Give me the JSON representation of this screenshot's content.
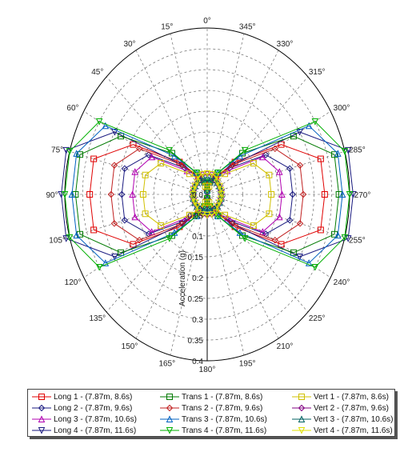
{
  "chart_data": {
    "type": "polar-line",
    "radial_axis_label": "Acceleration (g)",
    "radial_ticks": [
      "0.0",
      "0.05",
      "0.1",
      "0.15",
      "0.2",
      "0.25",
      "0.3",
      "0.35",
      "0.4"
    ],
    "rlim": [
      0,
      0.4
    ],
    "angle_ticks": [
      "0°",
      "15°",
      "30°",
      "45°",
      "60°",
      "75°",
      "90°",
      "105°",
      "120°",
      "135°",
      "150°",
      "165°",
      "180°",
      "195°",
      "210°",
      "225°",
      "240°",
      "255°",
      "270°",
      "285°",
      "300°",
      "315°",
      "330°",
      "345°"
    ],
    "angles_deg": [
      0,
      15,
      30,
      45,
      60,
      75,
      90,
      105,
      120,
      135,
      150,
      165,
      180,
      195,
      210,
      225,
      240,
      255,
      270,
      285,
      300,
      315,
      330,
      345
    ],
    "grid": true,
    "legend_position": "bottom",
    "series": [
      {
        "name": "Long 1 - (7.87m, 8.6s)",
        "color": "#e00000",
        "marker": "square",
        "values": [
          0.02,
          0.03,
          0.05,
          0.11,
          0.24,
          0.33,
          0.33,
          0.33,
          0.24,
          0.11,
          0.05,
          0.03,
          0.02,
          0.03,
          0.05,
          0.11,
          0.24,
          0.33,
          0.33,
          0.33,
          0.24,
          0.11,
          0.05,
          0.03
        ]
      },
      {
        "name": "Long 2 - (7.87m, 9.6s)",
        "color": "#1a1a80",
        "marker": "diamond",
        "values": [
          0.02,
          0.03,
          0.05,
          0.09,
          0.19,
          0.24,
          0.24,
          0.24,
          0.19,
          0.09,
          0.05,
          0.03,
          0.02,
          0.03,
          0.05,
          0.09,
          0.19,
          0.24,
          0.24,
          0.24,
          0.19,
          0.09,
          0.05,
          0.03
        ]
      },
      {
        "name": "Long 3 - (7.87m, 10.6s)",
        "color": "#b000b0",
        "marker": "triangle-up",
        "values": [
          0.02,
          0.03,
          0.05,
          0.08,
          0.18,
          0.21,
          0.21,
          0.21,
          0.18,
          0.08,
          0.05,
          0.03,
          0.02,
          0.03,
          0.05,
          0.08,
          0.18,
          0.21,
          0.21,
          0.21,
          0.18,
          0.08,
          0.05,
          0.03
        ]
      },
      {
        "name": "Long 4 - (7.87m, 11.6s)",
        "color": "#1a1a80",
        "marker": "triangle-down",
        "values": [
          0.02,
          0.03,
          0.05,
          0.1,
          0.3,
          0.41,
          0.41,
          0.41,
          0.3,
          0.1,
          0.05,
          0.03,
          0.02,
          0.03,
          0.05,
          0.1,
          0.3,
          0.41,
          0.41,
          0.41,
          0.3,
          0.1,
          0.05,
          0.03
        ]
      },
      {
        "name": "Trans 1 - (7.87m, 8.6s)",
        "color": "#007a00",
        "marker": "square",
        "values": [
          0.01,
          0.03,
          0.06,
          0.14,
          0.28,
          0.37,
          0.37,
          0.37,
          0.28,
          0.14,
          0.06,
          0.03,
          0.01,
          0.03,
          0.06,
          0.14,
          0.28,
          0.37,
          0.37,
          0.37,
          0.28,
          0.14,
          0.06,
          0.03
        ]
      },
      {
        "name": "Trans 2 - (7.87m, 9.6s)",
        "color": "#c02020",
        "marker": "diamond",
        "values": [
          0.01,
          0.03,
          0.05,
          0.1,
          0.22,
          0.27,
          0.27,
          0.27,
          0.22,
          0.1,
          0.05,
          0.03,
          0.01,
          0.03,
          0.05,
          0.1,
          0.22,
          0.27,
          0.27,
          0.27,
          0.22,
          0.1,
          0.05,
          0.03
        ]
      },
      {
        "name": "Trans 3 - (7.87m, 10.6s)",
        "color": "#0060c0",
        "marker": "triangle-up",
        "values": [
          0.01,
          0.03,
          0.06,
          0.13,
          0.33,
          0.38,
          0.38,
          0.38,
          0.33,
          0.13,
          0.06,
          0.03,
          0.01,
          0.03,
          0.06,
          0.13,
          0.33,
          0.38,
          0.38,
          0.38,
          0.33,
          0.13,
          0.06,
          0.03
        ]
      },
      {
        "name": "Trans 4 - (7.87m, 11.6s)",
        "color": "#00b000",
        "marker": "triangle-down",
        "values": [
          0.01,
          0.03,
          0.06,
          0.15,
          0.35,
          0.4,
          0.4,
          0.4,
          0.35,
          0.15,
          0.06,
          0.03,
          0.01,
          0.03,
          0.06,
          0.15,
          0.35,
          0.4,
          0.4,
          0.4,
          0.35,
          0.15,
          0.06,
          0.03
        ]
      },
      {
        "name": "Vert 1 - (7.87m, 8.6s)",
        "color": "#d0c000",
        "marker": "square",
        "values": [
          0.02,
          0.02,
          0.04,
          0.07,
          0.15,
          0.18,
          0.18,
          0.18,
          0.15,
          0.07,
          0.04,
          0.02,
          0.02,
          0.02,
          0.04,
          0.07,
          0.15,
          0.18,
          0.18,
          0.18,
          0.15,
          0.07,
          0.04,
          0.02
        ]
      },
      {
        "name": "Vert 2 - (7.87m, 9.6s)",
        "color": "#800080",
        "marker": "diamond",
        "values": [
          0.05,
          0.05,
          0.04,
          0.04,
          0.04,
          0.04,
          0.04,
          0.04,
          0.04,
          0.04,
          0.04,
          0.05,
          0.05,
          0.05,
          0.04,
          0.04,
          0.04,
          0.04,
          0.04,
          0.04,
          0.04,
          0.04,
          0.04,
          0.05
        ]
      },
      {
        "name": "Vert 3 - (7.87m, 10.6s)",
        "color": "#006060",
        "marker": "triangle-up",
        "values": [
          0.04,
          0.04,
          0.04,
          0.04,
          0.04,
          0.04,
          0.04,
          0.04,
          0.04,
          0.04,
          0.04,
          0.04,
          0.04,
          0.04,
          0.04,
          0.04,
          0.04,
          0.04,
          0.04,
          0.04,
          0.04,
          0.04,
          0.04,
          0.04
        ]
      },
      {
        "name": "Vert 4 - (7.87m, 11.6s)",
        "color": "#e0e000",
        "marker": "triangle-down",
        "values": [
          0.05,
          0.05,
          0.05,
          0.04,
          0.04,
          0.04,
          0.04,
          0.04,
          0.04,
          0.04,
          0.05,
          0.05,
          0.05,
          0.05,
          0.05,
          0.04,
          0.04,
          0.04,
          0.04,
          0.04,
          0.04,
          0.04,
          0.05,
          0.05
        ]
      }
    ]
  }
}
